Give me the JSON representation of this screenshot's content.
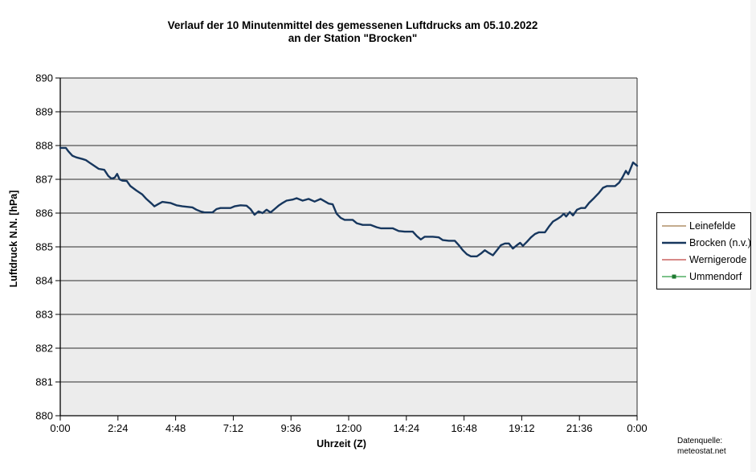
{
  "chart_data": {
    "type": "line",
    "title_line1": "Verlauf der 10 Minutenmittel des gemessenen Luftdrucks am 05.10.2022",
    "title_line2": "an der Station \"Brocken\"",
    "xlabel": "Uhrzeit (Z)",
    "ylabel": "Luftdruck N.N. [hPa]",
    "ylim": [
      880,
      890
    ],
    "y_tick_step": 1,
    "y_tick_labels": [
      "890",
      "889",
      "888",
      "887",
      "886",
      "885",
      "884",
      "883",
      "882",
      "881",
      "880"
    ],
    "x_ticks_minutes": [
      0,
      144,
      288,
      432,
      576,
      720,
      864,
      1008,
      1152,
      1296,
      1440
    ],
    "x_tick_labels": [
      "0:00",
      "2:24",
      "4:48",
      "7:12",
      "9:36",
      "12:00",
      "14:24",
      "16:48",
      "19:12",
      "21:36",
      "0:00"
    ],
    "xlim_minutes": [
      0,
      1440
    ],
    "grid": "horizontal",
    "grid_color": "#2b2b2b",
    "plot_bg": "#ececec",
    "axis_color": "#000000",
    "legend_position": "right",
    "series": [
      {
        "name": "Leinefelde",
        "color": "#a07a4a",
        "line_width": 1.3,
        "marker": false,
        "points_min_hpa": []
      },
      {
        "name": "Brocken (n.v.)",
        "color": "#17375e",
        "line_width": 2.4,
        "marker": false,
        "points_min_hpa": [
          [
            0,
            887.93
          ],
          [
            14,
            887.93
          ],
          [
            20,
            887.83
          ],
          [
            30,
            887.7
          ],
          [
            40,
            887.65
          ],
          [
            56,
            887.6
          ],
          [
            64,
            887.57
          ],
          [
            76,
            887.47
          ],
          [
            86,
            887.39
          ],
          [
            96,
            887.31
          ],
          [
            110,
            887.28
          ],
          [
            120,
            887.1
          ],
          [
            128,
            887.02
          ],
          [
            136,
            887.05
          ],
          [
            142,
            887.16
          ],
          [
            148,
            887.0
          ],
          [
            155,
            886.96
          ],
          [
            166,
            886.95
          ],
          [
            175,
            886.8
          ],
          [
            190,
            886.67
          ],
          [
            205,
            886.55
          ],
          [
            215,
            886.42
          ],
          [
            228,
            886.28
          ],
          [
            235,
            886.2
          ],
          [
            245,
            886.27
          ],
          [
            255,
            886.33
          ],
          [
            275,
            886.3
          ],
          [
            290,
            886.23
          ],
          [
            305,
            886.2
          ],
          [
            330,
            886.17
          ],
          [
            340,
            886.1
          ],
          [
            350,
            886.05
          ],
          [
            360,
            886.02
          ],
          [
            380,
            886.02
          ],
          [
            390,
            886.12
          ],
          [
            400,
            886.15
          ],
          [
            425,
            886.15
          ],
          [
            435,
            886.2
          ],
          [
            450,
            886.23
          ],
          [
            465,
            886.22
          ],
          [
            475,
            886.12
          ],
          [
            485,
            885.95
          ],
          [
            495,
            886.05
          ],
          [
            505,
            886.0
          ],
          [
            515,
            886.1
          ],
          [
            525,
            886.02
          ],
          [
            535,
            886.12
          ],
          [
            545,
            886.22
          ],
          [
            555,
            886.3
          ],
          [
            565,
            886.37
          ],
          [
            580,
            886.4
          ],
          [
            590,
            886.44
          ],
          [
            605,
            886.37
          ],
          [
            620,
            886.42
          ],
          [
            635,
            886.34
          ],
          [
            650,
            886.42
          ],
          [
            660,
            886.35
          ],
          [
            670,
            886.28
          ],
          [
            680,
            886.26
          ],
          [
            690,
            885.98
          ],
          [
            700,
            885.86
          ],
          [
            710,
            885.8
          ],
          [
            730,
            885.8
          ],
          [
            740,
            885.7
          ],
          [
            755,
            885.65
          ],
          [
            775,
            885.65
          ],
          [
            790,
            885.58
          ],
          [
            800,
            885.55
          ],
          [
            830,
            885.55
          ],
          [
            845,
            885.47
          ],
          [
            860,
            885.45
          ],
          [
            880,
            885.45
          ],
          [
            890,
            885.32
          ],
          [
            900,
            885.22
          ],
          [
            910,
            885.3
          ],
          [
            930,
            885.3
          ],
          [
            945,
            885.28
          ],
          [
            955,
            885.2
          ],
          [
            970,
            885.18
          ],
          [
            985,
            885.18
          ],
          [
            995,
            885.05
          ],
          [
            1005,
            884.9
          ],
          [
            1015,
            884.78
          ],
          [
            1025,
            884.72
          ],
          [
            1040,
            884.72
          ],
          [
            1050,
            884.8
          ],
          [
            1060,
            884.9
          ],
          [
            1070,
            884.82
          ],
          [
            1080,
            884.75
          ],
          [
            1090,
            884.9
          ],
          [
            1100,
            885.05
          ],
          [
            1110,
            885.1
          ],
          [
            1120,
            885.1
          ],
          [
            1130,
            884.95
          ],
          [
            1140,
            885.05
          ],
          [
            1148,
            885.12
          ],
          [
            1155,
            885.03
          ],
          [
            1165,
            885.15
          ],
          [
            1175,
            885.28
          ],
          [
            1185,
            885.38
          ],
          [
            1195,
            885.43
          ],
          [
            1210,
            885.43
          ],
          [
            1220,
            885.6
          ],
          [
            1230,
            885.75
          ],
          [
            1240,
            885.82
          ],
          [
            1250,
            885.9
          ],
          [
            1257,
            885.98
          ],
          [
            1263,
            885.9
          ],
          [
            1272,
            886.03
          ],
          [
            1280,
            885.93
          ],
          [
            1290,
            886.1
          ],
          [
            1300,
            886.15
          ],
          [
            1310,
            886.15
          ],
          [
            1320,
            886.3
          ],
          [
            1333,
            886.45
          ],
          [
            1345,
            886.6
          ],
          [
            1355,
            886.75
          ],
          [
            1365,
            886.8
          ],
          [
            1385,
            886.8
          ],
          [
            1395,
            886.9
          ],
          [
            1403,
            887.05
          ],
          [
            1412,
            887.25
          ],
          [
            1418,
            887.15
          ],
          [
            1430,
            887.5
          ],
          [
            1440,
            887.4
          ]
        ]
      },
      {
        "name": "Wernigerode",
        "color": "#c04540",
        "line_width": 1.3,
        "marker": false,
        "points_min_hpa": []
      },
      {
        "name": "Ummendorf",
        "color": "#2f9e44",
        "line_width": 1.3,
        "marker": true,
        "marker_color": "#1e7a30",
        "points_min_hpa": []
      }
    ]
  },
  "source": {
    "line1": "Datenquelle:",
    "line2": "meteostat.net"
  }
}
